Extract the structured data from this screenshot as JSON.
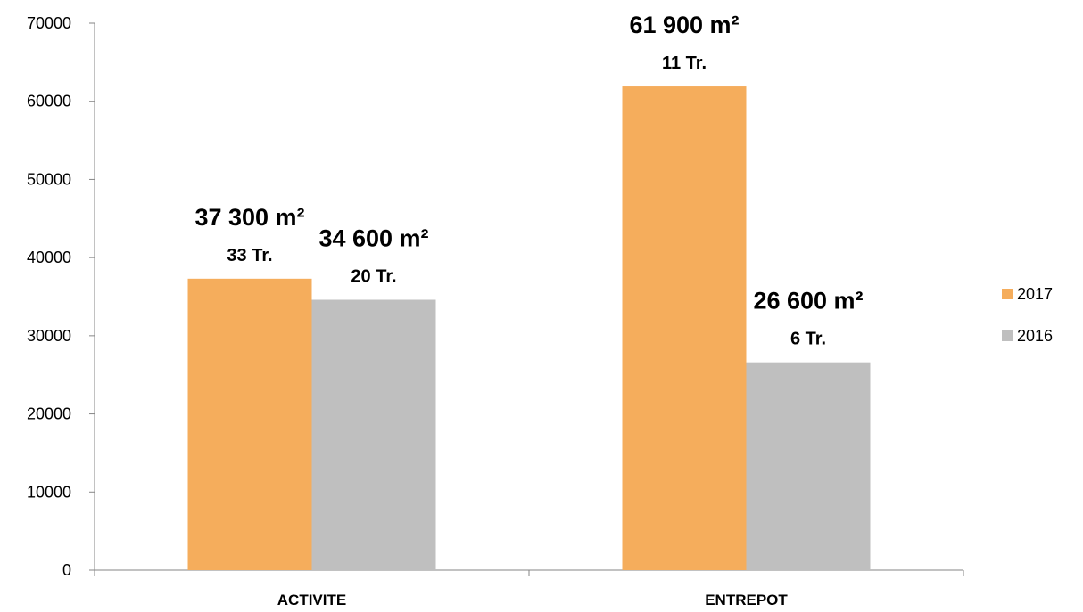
{
  "chart_data": {
    "type": "bar",
    "title": "",
    "xlabel": "",
    "ylabel": "",
    "categories": [
      "ACTIVITE",
      "ENTREPOT"
    ],
    "series": [
      {
        "name": "2017",
        "color": "#F5AD5C",
        "values": [
          37300,
          61900
        ],
        "labels": [
          "37 300 m²",
          "61 900 m²"
        ],
        "counts": [
          "33 Tr.",
          "11 Tr."
        ]
      },
      {
        "name": "2016",
        "color": "#BFBFBF",
        "values": [
          34600,
          26600
        ],
        "labels": [
          "34 600 m²",
          "26 600 m²"
        ],
        "counts": [
          "20 Tr.",
          "6 Tr."
        ]
      }
    ],
    "ylim": [
      0,
      70000
    ],
    "yticks": [
      0,
      10000,
      20000,
      30000,
      40000,
      50000,
      60000,
      70000
    ],
    "grid": false,
    "legend_position": "right"
  }
}
